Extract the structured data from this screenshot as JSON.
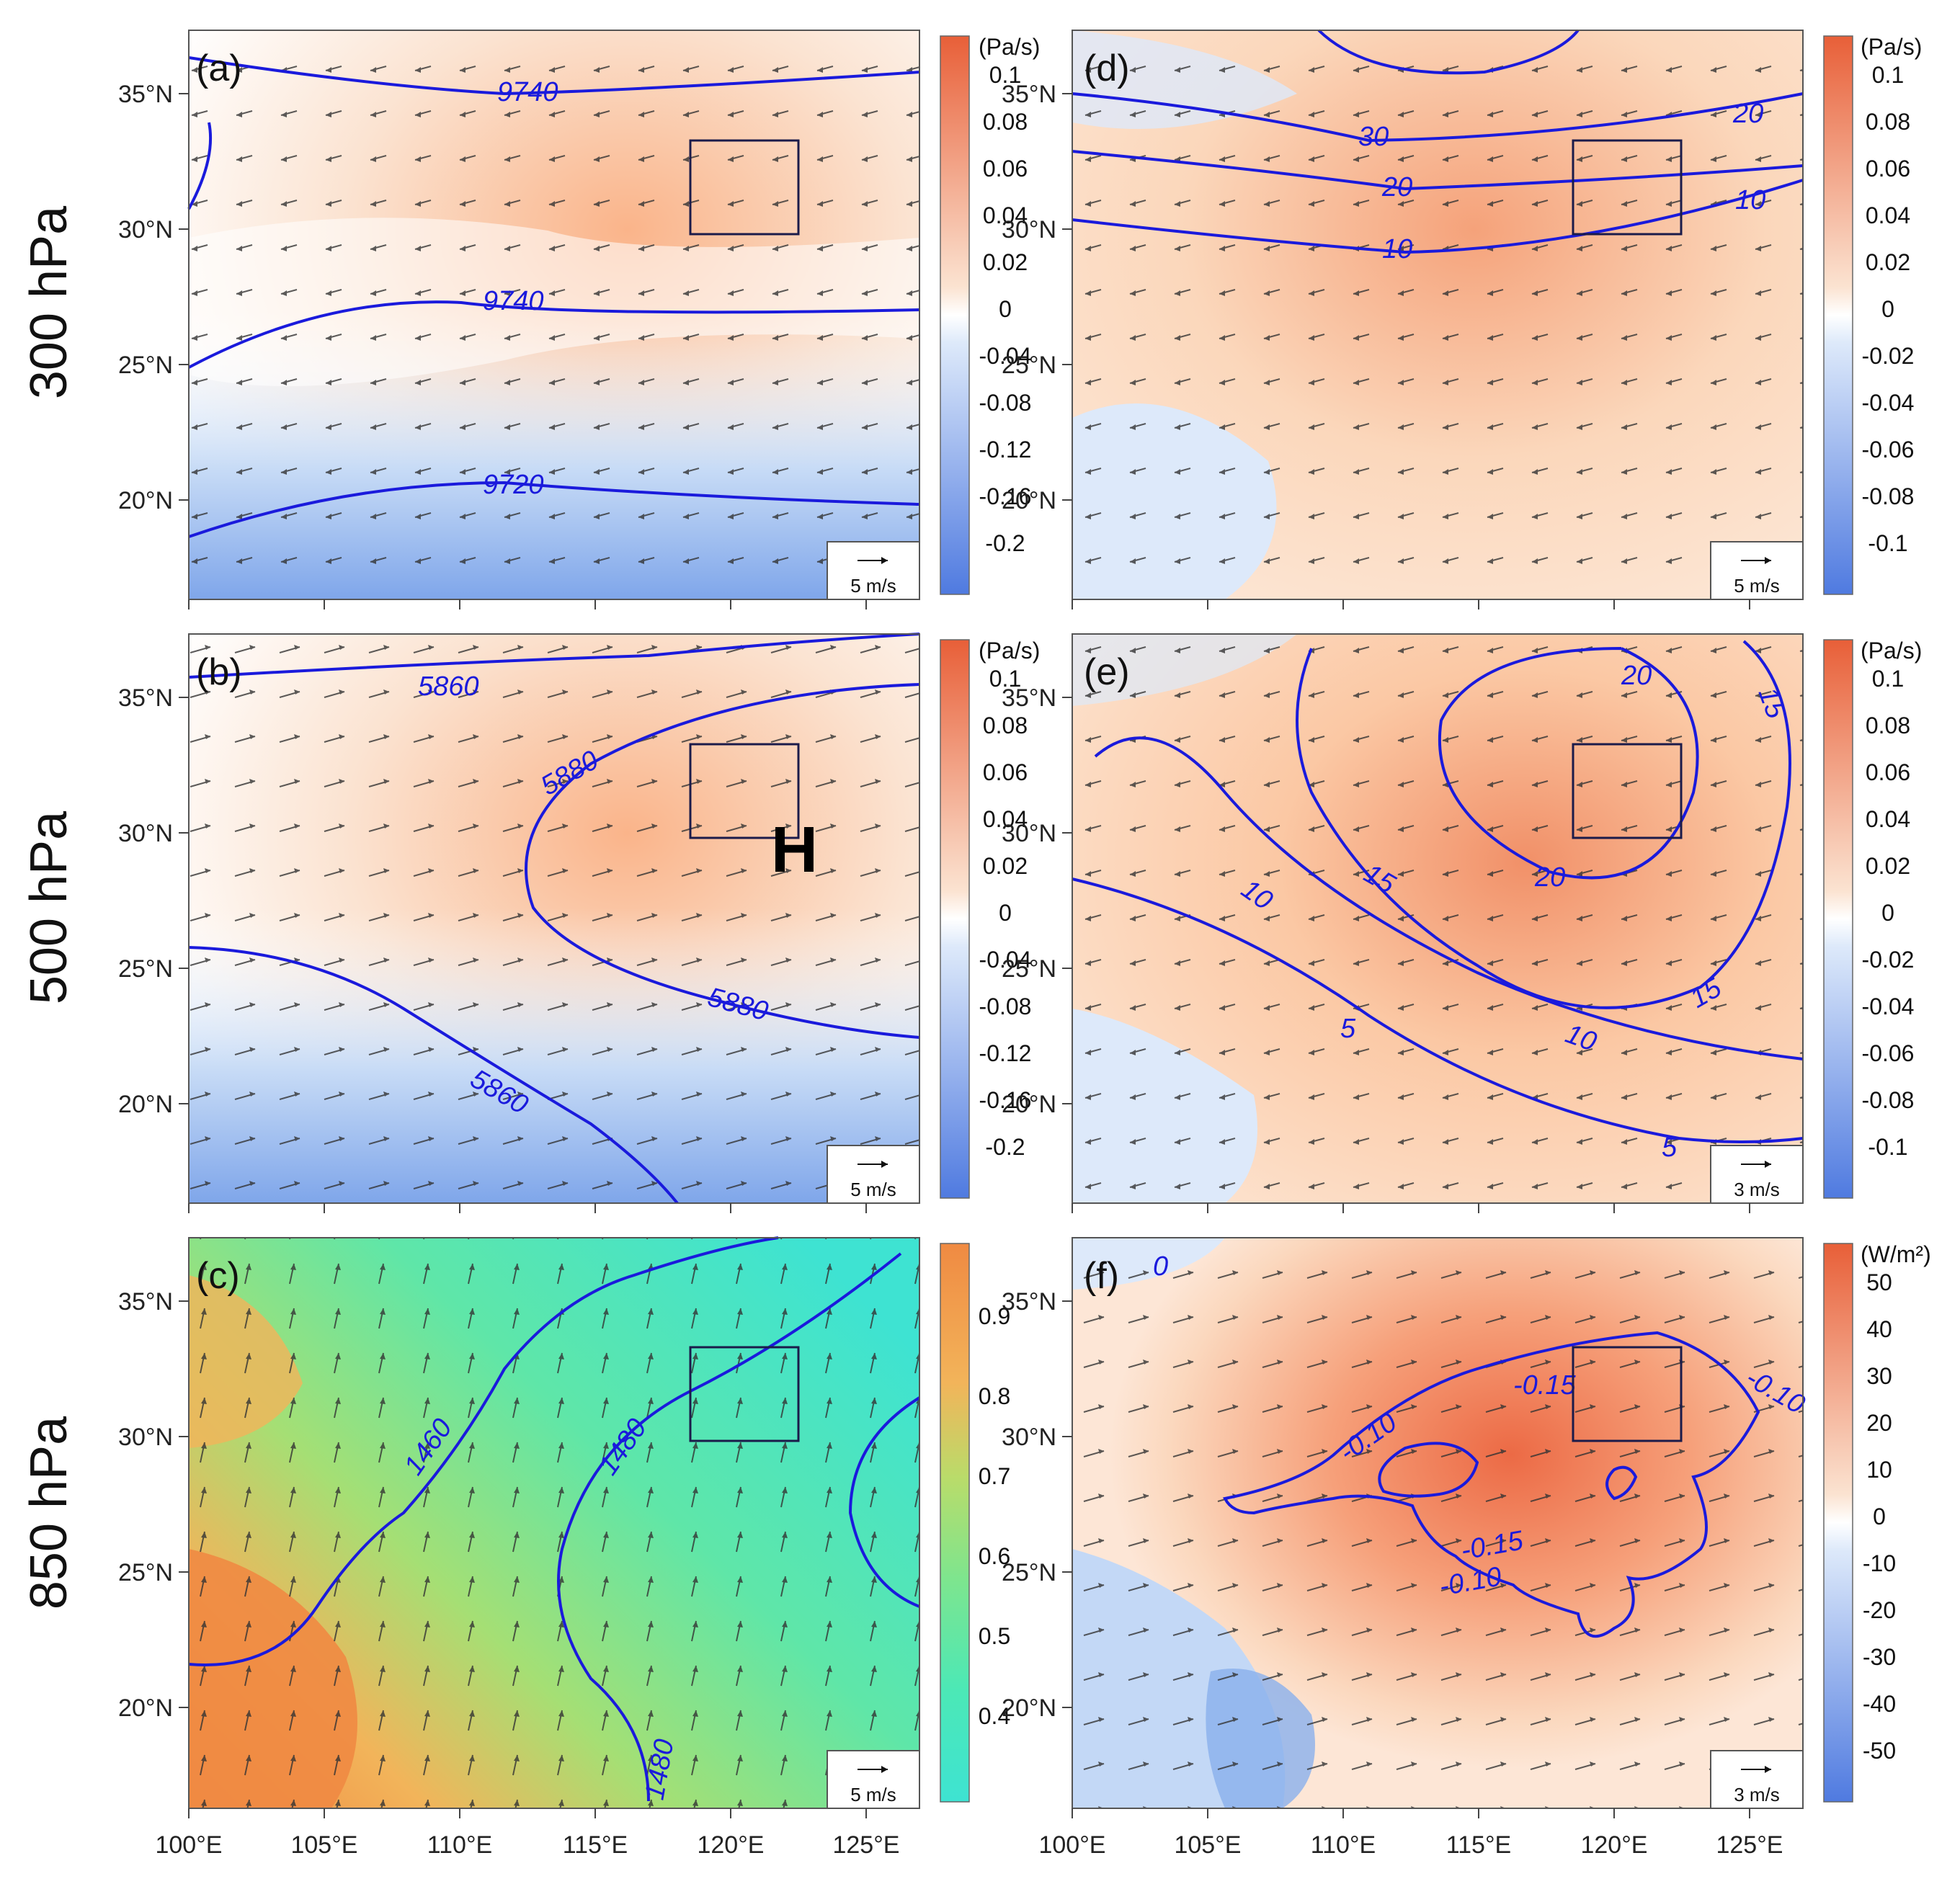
{
  "rows": [
    "300 hPa",
    "500 hPa",
    "850 hPa"
  ],
  "lat_ticks": [
    "35°N",
    "30°N",
    "25°N",
    "20°N"
  ],
  "lon_ticks": [
    "100°E",
    "105°E",
    "110°E",
    "115°E",
    "120°E",
    "125°E"
  ],
  "colors": {
    "contour": "#1a1adc",
    "box": "#1b1b4a",
    "red_ramp": [
      "#fbe3d1",
      "#fcd0b0",
      "#fab48a",
      "#f59768",
      "#f07a4c",
      "#e85f38"
    ],
    "blue_ramp": [
      "#ffffff",
      "#dde9fa",
      "#c3d8f6",
      "#a7c5f1",
      "#8ab0ec",
      "#6f9ae7",
      "#557fe0"
    ],
    "rh_ramp": [
      "#3ee3d2",
      "#4ce8b6",
      "#7ee58e",
      "#b9dc6a",
      "#f2b45a",
      "#f08a42"
    ]
  },
  "panels": [
    {
      "id": "a",
      "label": "(a)",
      "background": "mixed",
      "ref_vector": "5 m/s",
      "contours": [
        "9740",
        "9740",
        "9720"
      ],
      "colorbar": {
        "unit": "(Pa/s)",
        "labels": [
          "0.1",
          "0.08",
          "0.06",
          "0.04",
          "0.02",
          "0",
          "-0.04",
          "-0.08",
          "-0.12",
          "-0.16",
          "-0.2"
        ]
      }
    },
    {
      "id": "d",
      "label": "(d)",
      "background": "warm",
      "ref_vector": "5 m/s",
      "contours": [
        "30",
        "20",
        "20",
        "10",
        "10"
      ],
      "colorbar": {
        "unit": "(Pa/s)",
        "labels": [
          "0.1",
          "0.08",
          "0.06",
          "0.04",
          "0.02",
          "0",
          "-0.02",
          "-0.04",
          "-0.06",
          "-0.08",
          "-0.1"
        ]
      }
    },
    {
      "id": "b",
      "label": "(b)",
      "background": "mixed",
      "ref_vector": "5 m/s",
      "marker": "H",
      "contours": [
        "5860",
        "5880",
        "5880",
        "5860"
      ],
      "colorbar": {
        "unit": "(Pa/s)",
        "labels": [
          "0.1",
          "0.08",
          "0.06",
          "0.04",
          "0.02",
          "0",
          "-0.04",
          "-0.08",
          "-0.12",
          "-0.16",
          "-0.2"
        ]
      }
    },
    {
      "id": "e",
      "label": "(e)",
      "background": "warm",
      "ref_vector": "3 m/s",
      "contours": [
        "20",
        "15",
        "15",
        "20",
        "10",
        "10",
        "15",
        "5",
        "5"
      ],
      "colorbar": {
        "unit": "(Pa/s)",
        "labels": [
          "0.1",
          "0.08",
          "0.06",
          "0.04",
          "0.02",
          "0",
          "-0.02",
          "-0.04",
          "-0.06",
          "-0.08",
          "-0.1"
        ]
      }
    },
    {
      "id": "c",
      "label": "(c)",
      "background": "humidity",
      "ref_vector": "5 m/s",
      "contours": [
        "1460",
        "1480",
        "1480"
      ],
      "colorbar": {
        "unit": "",
        "labels": [
          "0.9",
          "0.8",
          "0.7",
          "0.6",
          "0.5",
          "0.4"
        ]
      }
    },
    {
      "id": "f",
      "label": "(f)",
      "background": "flux",
      "ref_vector": "3 m/s",
      "contours": [
        "0",
        "-0.15",
        "-0.10",
        "-0.10",
        "-0.15",
        "-0.10"
      ],
      "colorbar": {
        "unit": "(W/m²)",
        "labels": [
          "50",
          "40",
          "30",
          "20",
          "10",
          "0",
          "-10",
          "-20",
          "-30",
          "-40",
          "-50"
        ]
      }
    }
  ]
}
